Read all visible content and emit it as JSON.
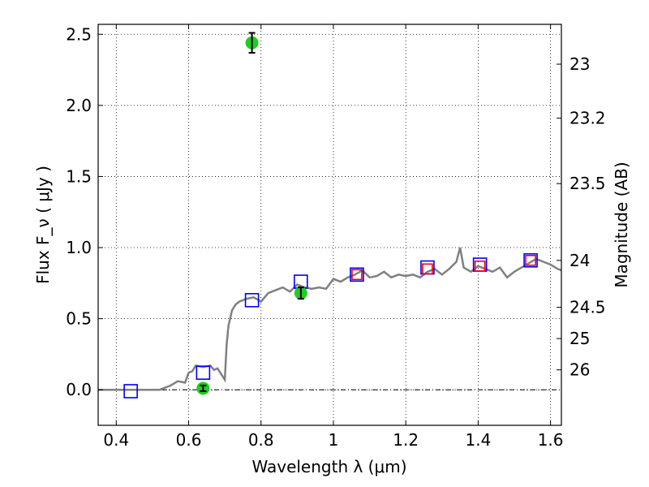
{
  "chart_data": {
    "type": "scatter",
    "xlabel": "Wavelength  λ (μm)",
    "ylabel": "Flux  F_ν  ( μJy )",
    "ylabel_right": "Magnitude (AB)",
    "xlim": [
      0.35,
      1.63
    ],
    "ylim": [
      -0.25,
      2.57
    ],
    "grid": true,
    "x_ticks": [
      {
        "value": 0.4,
        "label": "0.4"
      },
      {
        "value": 0.6,
        "label": "0.6"
      },
      {
        "value": 0.8,
        "label": "0.8"
      },
      {
        "value": 1.0,
        "label": "1"
      },
      {
        "value": 1.2,
        "label": "1.2"
      },
      {
        "value": 1.4,
        "label": "1.4"
      },
      {
        "value": 1.6,
        "label": "1.6"
      }
    ],
    "y_ticks": [
      {
        "value": 0.0,
        "label": "0.0"
      },
      {
        "value": 0.5,
        "label": "0.5"
      },
      {
        "value": 1.0,
        "label": "1.0"
      },
      {
        "value": 1.5,
        "label": "1.5"
      },
      {
        "value": 2.0,
        "label": "2.0"
      },
      {
        "value": 2.5,
        "label": "2.5"
      }
    ],
    "right_ticks": [
      {
        "flux": 2.29,
        "label": "23"
      },
      {
        "flux": 1.91,
        "label": "23.2"
      },
      {
        "flux": 1.45,
        "label": "23.5"
      },
      {
        "flux": 0.91,
        "label": "24"
      },
      {
        "flux": 0.58,
        "label": "24.5"
      },
      {
        "flux": 0.36,
        "label": "25"
      },
      {
        "flux": 0.14,
        "label": "26"
      }
    ],
    "series": [
      {
        "style": "line",
        "color": "#808080",
        "points": [
          [
            0.35,
            0.0
          ],
          [
            0.52,
            0.0
          ],
          [
            0.55,
            0.03
          ],
          [
            0.57,
            0.06
          ],
          [
            0.59,
            0.05
          ],
          [
            0.6,
            0.12
          ],
          [
            0.61,
            0.13
          ],
          [
            0.62,
            0.17
          ],
          [
            0.64,
            0.16
          ],
          [
            0.66,
            0.17
          ],
          [
            0.67,
            0.14
          ],
          [
            0.68,
            0.15
          ],
          [
            0.69,
            0.11
          ],
          [
            0.7,
            0.07
          ],
          [
            0.705,
            0.32
          ],
          [
            0.71,
            0.45
          ],
          [
            0.72,
            0.56
          ],
          [
            0.73,
            0.6
          ],
          [
            0.74,
            0.62
          ],
          [
            0.76,
            0.64
          ],
          [
            0.78,
            0.65
          ],
          [
            0.8,
            0.62
          ],
          [
            0.82,
            0.68
          ],
          [
            0.84,
            0.7
          ],
          [
            0.86,
            0.72
          ],
          [
            0.88,
            0.69
          ],
          [
            0.9,
            0.74
          ],
          [
            0.92,
            0.72
          ],
          [
            0.94,
            0.71
          ],
          [
            0.96,
            0.72
          ],
          [
            0.98,
            0.71
          ],
          [
            1.0,
            0.78
          ],
          [
            1.02,
            0.76
          ],
          [
            1.04,
            0.79
          ],
          [
            1.06,
            0.81
          ],
          [
            1.08,
            0.84
          ],
          [
            1.1,
            0.79
          ],
          [
            1.12,
            0.8
          ],
          [
            1.14,
            0.83
          ],
          [
            1.16,
            0.79
          ],
          [
            1.18,
            0.81
          ],
          [
            1.2,
            0.8
          ],
          [
            1.22,
            0.81
          ],
          [
            1.24,
            0.79
          ],
          [
            1.26,
            0.83
          ],
          [
            1.28,
            0.85
          ],
          [
            1.3,
            0.81
          ],
          [
            1.32,
            0.85
          ],
          [
            1.34,
            0.9
          ],
          [
            1.35,
            1.0
          ],
          [
            1.36,
            0.86
          ],
          [
            1.38,
            0.83
          ],
          [
            1.4,
            0.87
          ],
          [
            1.42,
            0.85
          ],
          [
            1.44,
            0.83
          ],
          [
            1.46,
            0.86
          ],
          [
            1.48,
            0.79
          ],
          [
            1.5,
            0.83
          ],
          [
            1.52,
            0.86
          ],
          [
            1.54,
            0.89
          ],
          [
            1.56,
            0.92
          ],
          [
            1.58,
            0.9
          ],
          [
            1.6,
            0.88
          ],
          [
            1.62,
            0.85
          ],
          [
            1.63,
            0.84
          ]
        ]
      },
      {
        "style": "scatter",
        "marker": "open-square",
        "color": "#0000ff",
        "x": [
          0.44,
          0.64,
          0.775,
          0.91,
          1.065,
          1.26,
          1.405,
          1.545
        ],
        "y": [
          -0.01,
          0.12,
          0.63,
          0.76,
          0.81,
          0.86,
          0.88,
          0.91
        ]
      },
      {
        "style": "scatter",
        "marker": "open-square-small",
        "color": "#ff0000",
        "x": [
          1.065,
          1.26,
          1.405,
          1.545
        ],
        "y": [
          0.81,
          0.85,
          0.87,
          0.91
        ]
      },
      {
        "style": "scatter",
        "marker": "filled-circle",
        "color": "#22cc22",
        "x": [
          0.64,
          0.775,
          0.91
        ],
        "y": [
          0.01,
          2.44,
          0.68
        ],
        "errors": [
          0.02,
          0.07,
          0.04
        ]
      }
    ]
  }
}
